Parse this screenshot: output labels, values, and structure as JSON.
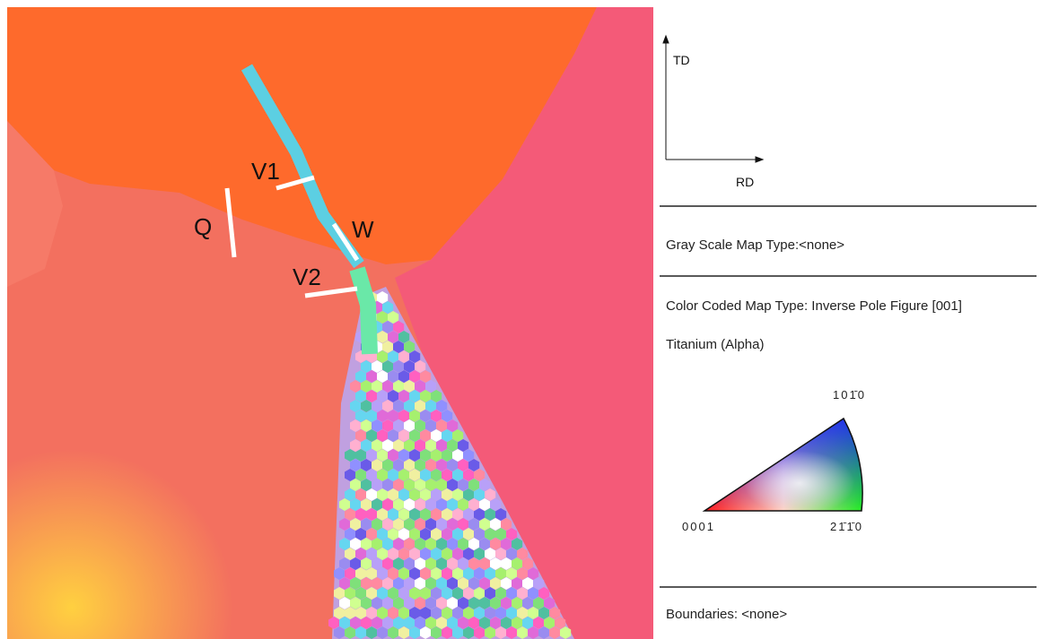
{
  "map": {
    "labels": {
      "v1": "V1",
      "q": "Q",
      "w": "W",
      "v2": "V2"
    }
  },
  "axes": {
    "td": "TD",
    "rd": "RD"
  },
  "legend": {
    "gray_scale": "Gray Scale Map Type:<none>",
    "color_coded": "Color Coded Map Type: Inverse Pole Figure [001]",
    "phase": "Titanium (Alpha)",
    "ipf": {
      "top": "101̄0",
      "left": "0001",
      "right": "21̄1̄0"
    },
    "boundaries": "Boundaries: <none>"
  }
}
